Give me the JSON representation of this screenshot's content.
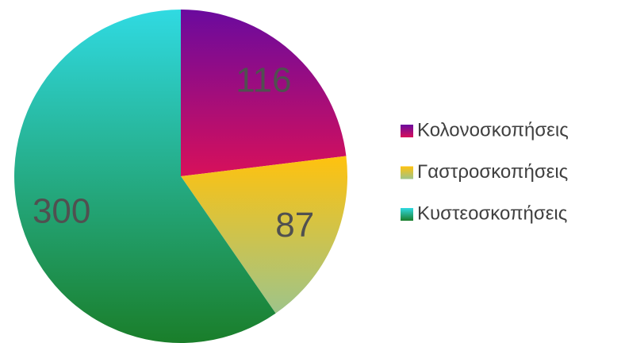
{
  "chart_data": {
    "type": "pie",
    "categories": [
      "Κολονοσκοπήσεις",
      "Γαστροσκοπήσεις",
      "Κυστεοσκοπήσεις"
    ],
    "values": [
      116,
      87,
      300
    ],
    "colors": [
      [
        "#6a0a9e",
        "#d8105a"
      ],
      [
        "#ffc20e",
        "#9ec48a"
      ],
      [
        "#30dae2",
        "#1a7e2a"
      ]
    ],
    "legend": "right"
  }
}
